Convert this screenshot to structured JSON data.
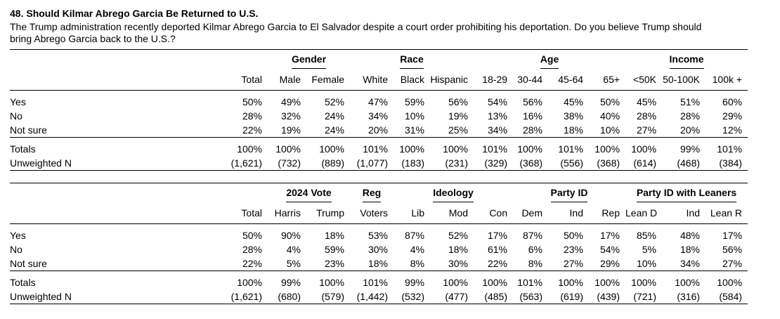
{
  "title": "48. Should Kilmar Abrego Garcia Be Returned to U.S.",
  "question": "The Trump administration recently deported Kilmar Abrego Garcia to El Salvador despite a court order prohibiting his deportation.  Do you believe Trump should bring Abrego Garcia back to the U.S.?",
  "table1": {
    "groups": [
      {
        "label": "",
        "span": 2
      },
      {
        "label": "Gender",
        "span": 2
      },
      {
        "label": "Race",
        "span": 3
      },
      {
        "label": "Age",
        "span": 4
      },
      {
        "label": "Income",
        "span": 3
      }
    ],
    "columns": [
      "Total",
      "Male",
      "Female",
      "White",
      "Black",
      "Hispanic",
      "18-29",
      "30-44",
      "45-64",
      "65+",
      "<50K",
      "50-100K",
      "100k +"
    ],
    "rows": [
      {
        "label": "Yes",
        "values": [
          "50%",
          "49%",
          "52%",
          "47%",
          "59%",
          "56%",
          "54%",
          "56%",
          "45%",
          "50%",
          "45%",
          "51%",
          "60%"
        ]
      },
      {
        "label": "No",
        "values": [
          "28%",
          "32%",
          "24%",
          "34%",
          "10%",
          "19%",
          "13%",
          "16%",
          "38%",
          "40%",
          "28%",
          "28%",
          "29%"
        ]
      },
      {
        "label": "Not sure",
        "values": [
          "22%",
          "19%",
          "24%",
          "20%",
          "31%",
          "25%",
          "34%",
          "28%",
          "18%",
          "10%",
          "27%",
          "20%",
          "12%"
        ]
      }
    ],
    "totals": {
      "label": "Totals",
      "values": [
        "100%",
        "100%",
        "100%",
        "101%",
        "100%",
        "100%",
        "101%",
        "100%",
        "101%",
        "100%",
        "100%",
        "99%",
        "101%"
      ]
    },
    "unweighted": {
      "label": "Unweighted N",
      "values": [
        "(1,621)",
        "(732)",
        "(889)",
        "(1,077)",
        "(183)",
        "(231)",
        "(329)",
        "(368)",
        "(556)",
        "(368)",
        "(614)",
        "(468)",
        "(384)"
      ]
    }
  },
  "table2": {
    "groups": [
      {
        "label": "",
        "span": 2
      },
      {
        "label": "2024 Vote",
        "span": 2
      },
      {
        "label": "Reg",
        "span": 1
      },
      {
        "label": "Ideology",
        "span": 3
      },
      {
        "label": "Party ID",
        "span": 3
      },
      {
        "label": "Party ID with Leaners",
        "span": 3
      }
    ],
    "columns": [
      "Total",
      "Harris",
      "Trump",
      "Voters",
      "Lib",
      "Mod",
      "Con",
      "Dem",
      "Ind",
      "Rep",
      "Lean D",
      "Ind",
      "Lean R"
    ],
    "rows": [
      {
        "label": "Yes",
        "values": [
          "50%",
          "90%",
          "18%",
          "53%",
          "87%",
          "52%",
          "17%",
          "87%",
          "50%",
          "17%",
          "85%",
          "48%",
          "17%"
        ]
      },
      {
        "label": "No",
        "values": [
          "28%",
          "4%",
          "59%",
          "30%",
          "4%",
          "18%",
          "61%",
          "6%",
          "23%",
          "54%",
          "5%",
          "18%",
          "56%"
        ]
      },
      {
        "label": "Not sure",
        "values": [
          "22%",
          "5%",
          "23%",
          "18%",
          "8%",
          "30%",
          "22%",
          "8%",
          "27%",
          "29%",
          "10%",
          "34%",
          "27%"
        ]
      }
    ],
    "totals": {
      "label": "Totals",
      "values": [
        "100%",
        "99%",
        "100%",
        "101%",
        "99%",
        "100%",
        "100%",
        "101%",
        "100%",
        "100%",
        "100%",
        "100%",
        "100%"
      ]
    },
    "unweighted": {
      "label": "Unweighted N",
      "values": [
        "(1,621)",
        "(680)",
        "(579)",
        "(1,442)",
        "(532)",
        "(477)",
        "(485)",
        "(563)",
        "(619)",
        "(439)",
        "(721)",
        "(316)",
        "(584)"
      ]
    }
  }
}
